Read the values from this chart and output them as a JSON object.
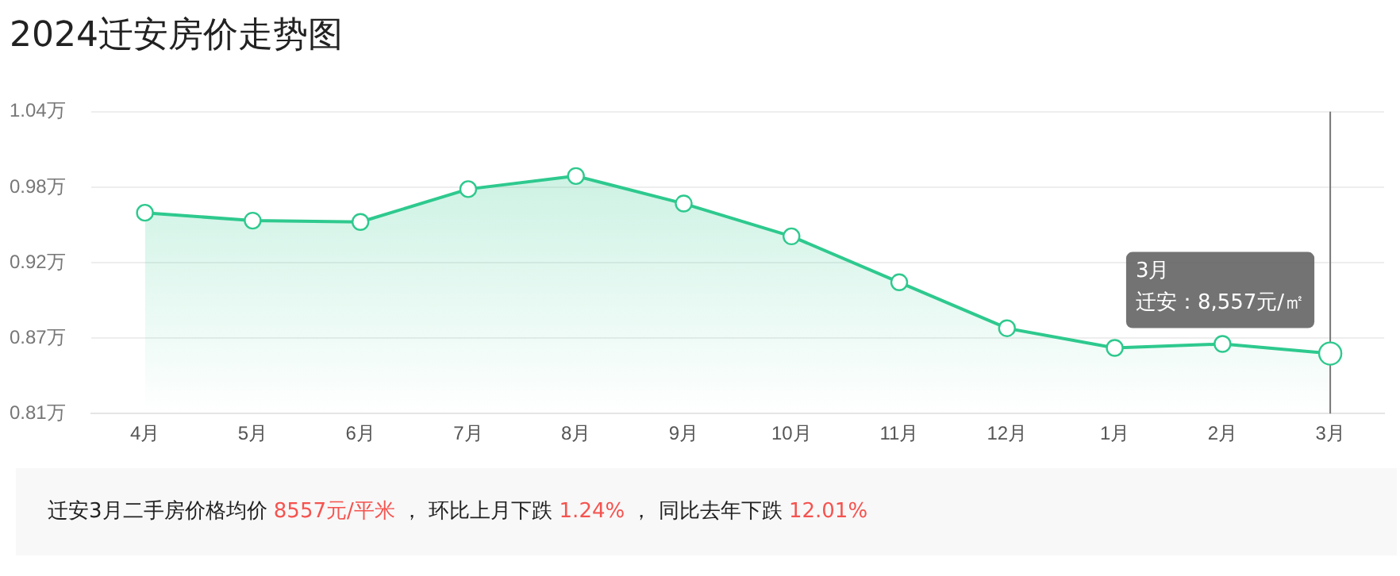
{
  "chart_data": {
    "type": "area",
    "title": "2024迁安房价走势图",
    "categories": [
      "4月",
      "5月",
      "6月",
      "7月",
      "8月",
      "9月",
      "10月",
      "11月",
      "12月",
      "1月",
      "2月",
      "3月"
    ],
    "series": [
      {
        "color": "#2ec98e",
        "values": [
          0.963,
          0.957,
          0.956,
          0.981,
          0.991,
          0.97,
          0.945,
          0.91,
          0.875,
          0.86,
          0.863,
          0.8557
        ]
      }
    ],
    "ylim": [
      0.81,
      1.04
    ],
    "yticks": [
      {
        "value": 0.81,
        "label": "0.81万"
      },
      {
        "value": 0.8675,
        "label": "0.87万"
      },
      {
        "value": 0.925,
        "label": "0.92万"
      },
      {
        "value": 0.9825,
        "label": "0.98万"
      },
      {
        "value": 1.04,
        "label": "1.04万"
      }
    ],
    "grid": "y",
    "legend": false,
    "marker": "circle",
    "line_style": "solid",
    "ref_lines": [
      {
        "axis": "x",
        "value": "3月",
        "color": "#777777"
      }
    ],
    "annotations": [
      "3月",
      "迁安：8,557元/㎡",
      "迁安3月二手房价格均价",
      "8557元/平米",
      "， 环比上月下跌",
      "1.24%",
      "， 同比去年下跌",
      "12.01%"
    ]
  }
}
